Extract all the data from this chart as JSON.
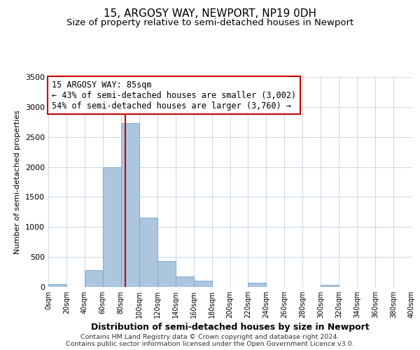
{
  "title": "15, ARGOSY WAY, NEWPORT, NP19 0DH",
  "subtitle": "Size of property relative to semi-detached houses in Newport",
  "xlabel": "Distribution of semi-detached houses by size in Newport",
  "ylabel": "Number of semi-detached properties",
  "bar_edges": [
    0,
    20,
    40,
    60,
    80,
    100,
    120,
    140,
    160,
    180,
    200,
    220,
    240,
    260,
    280,
    300,
    320,
    340,
    360,
    380,
    400
  ],
  "bar_heights": [
    50,
    0,
    280,
    2000,
    2730,
    1150,
    430,
    175,
    110,
    0,
    0,
    70,
    0,
    0,
    0,
    35,
    0,
    0,
    0,
    0
  ],
  "bar_color": "#adc6e0",
  "bar_edgecolor": "#7aaac8",
  "property_value": 85,
  "vline_color": "#cc0000",
  "annotation_box_edgecolor": "#cc0000",
  "annotation_title": "15 ARGOSY WAY: 85sqm",
  "annotation_line1": "← 43% of semi-detached houses are smaller (3,002)",
  "annotation_line2": "54% of semi-detached houses are larger (3,760) →",
  "ylim": [
    0,
    3500
  ],
  "xlim": [
    0,
    400
  ],
  "yticks": [
    0,
    500,
    1000,
    1500,
    2000,
    2500,
    3000,
    3500
  ],
  "xtick_positions": [
    0,
    20,
    40,
    60,
    80,
    100,
    120,
    140,
    160,
    180,
    200,
    220,
    240,
    260,
    280,
    300,
    320,
    340,
    360,
    380,
    400
  ],
  "xtick_labels": [
    "0sqm",
    "20sqm",
    "40sqm",
    "60sqm",
    "80sqm",
    "100sqm",
    "120sqm",
    "140sqm",
    "160sqm",
    "180sqm",
    "200sqm",
    "220sqm",
    "240sqm",
    "260sqm",
    "280sqm",
    "300sqm",
    "320sqm",
    "340sqm",
    "360sqm",
    "380sqm",
    "400sqm"
  ],
  "footer_line1": "Contains HM Land Registry data © Crown copyright and database right 2024.",
  "footer_line2": "Contains public sector information licensed under the Open Government Licence v3.0.",
  "background_color": "#ffffff",
  "grid_color": "#c8d8e8",
  "title_fontsize": 11,
  "subtitle_fontsize": 9.5,
  "annotation_fontsize": 8.5,
  "footer_fontsize": 6.8,
  "ylabel_fontsize": 8,
  "xlabel_fontsize": 9,
  "ytick_fontsize": 8,
  "xtick_fontsize": 7
}
